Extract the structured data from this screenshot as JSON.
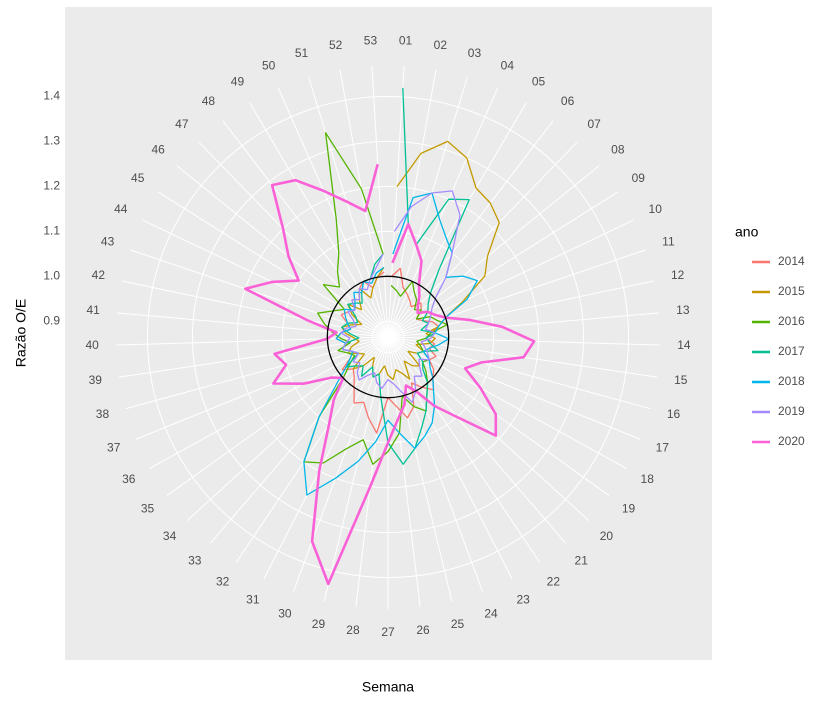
{
  "chart_data": {
    "type": "polar_line",
    "x_label": "Semana",
    "y_label": "Razão O/E",
    "categories": [
      "01",
      "02",
      "03",
      "04",
      "05",
      "06",
      "07",
      "08",
      "09",
      "10",
      "11",
      "12",
      "13",
      "14",
      "15",
      "16",
      "17",
      "18",
      "19",
      "20",
      "21",
      "22",
      "23",
      "24",
      "25",
      "26",
      "27",
      "28",
      "29",
      "30",
      "31",
      "32",
      "33",
      "34",
      "35",
      "36",
      "37",
      "38",
      "39",
      "40",
      "41",
      "42",
      "43",
      "44",
      "45",
      "46",
      "47",
      "48",
      "49",
      "50",
      "51",
      "52",
      "53"
    ],
    "ylim": [
      0.865,
      1.47
    ],
    "yticks": [
      {
        "value": 0.9,
        "label": "0.9"
      },
      {
        "value": 1.0,
        "label": "1.0"
      },
      {
        "value": 1.1,
        "label": "1.1"
      },
      {
        "value": 1.2,
        "label": "1.2"
      },
      {
        "value": 1.3,
        "label": "1.3"
      },
      {
        "value": 1.4,
        "label": "1.4"
      }
    ],
    "reference_circle": 1.0,
    "grid": true,
    "legend_title": "ano",
    "legend_position": "right",
    "series": [
      {
        "name": "2014",
        "color": "#f8766d",
        "line_width": 1.3,
        "values": [
          1.0,
          1.02,
          0.98,
          0.97,
          0.96,
          0.95,
          0.97,
          0.96,
          0.94,
          0.95,
          0.97,
          0.98,
          0.96,
          0.95,
          0.97,
          0.96,
          0.98,
          0.97,
          0.99,
          1.0,
          1.02,
          1.0,
          0.98,
          1.03,
          1.05,
          1.02,
          1.0,
          1.08,
          1.05,
          1.02,
          1.03,
          1.0,
          0.98,
          0.97,
          0.99,
          0.96,
          0.95,
          0.97,
          0.96,
          0.98,
          0.97,
          0.95,
          0.96,
          0.98,
          0.97,
          0.96,
          0.98,
          0.97,
          0.99,
          1.0,
          0.98,
          1.0,
          1.01
        ]
      },
      {
        "name": "2015",
        "color": "#c49a00",
        "line_width": 1.3,
        "values": [
          1.2,
          1.28,
          1.32,
          1.3,
          1.25,
          1.24,
          1.22,
          1.15,
          1.12,
          1.05,
          1.0,
          0.98,
          0.95,
          0.97,
          0.96,
          0.93,
          0.95,
          0.94,
          0.92,
          0.96,
          0.95,
          0.93,
          0.97,
          0.95,
          0.94,
          0.96,
          0.95,
          0.93,
          0.95,
          0.96,
          0.94,
          0.92,
          0.95,
          0.97,
          0.93,
          0.94,
          0.96,
          0.95,
          0.93,
          0.94,
          0.96,
          0.97,
          0.95,
          0.93,
          0.96,
          0.98,
          0.95,
          0.97,
          0.99,
          0.96,
          0.98,
          1.0,
          1.02
        ]
      },
      {
        "name": "2016",
        "color": "#53b400",
        "line_width": 1.3,
        "values": [
          0.98,
          0.97,
          0.96,
          1.0,
          0.98,
          0.97,
          0.95,
          0.96,
          0.94,
          0.97,
          0.98,
          1.0,
          0.96,
          0.95,
          0.93,
          0.94,
          0.95,
          0.97,
          0.96,
          0.98,
          1.0,
          1.02,
          1.05,
          1.03,
          1.0,
          1.08,
          1.12,
          1.15,
          1.1,
          1.13,
          1.18,
          1.2,
          1.1,
          1.0,
          0.97,
          0.95,
          0.96,
          0.98,
          0.95,
          0.97,
          0.99,
          1.01,
          1.03,
          1.0,
          0.98,
          1.05,
          1.02,
          1.05,
          1.08,
          1.15,
          1.34,
          1.2,
          1.05
        ]
      },
      {
        "name": "2017",
        "color": "#00c094",
        "line_width": 1.3,
        "values": [
          1.42,
          1.12,
          1.08,
          1.2,
          1.22,
          1.05,
          1.0,
          0.98,
          0.97,
          0.95,
          0.96,
          0.94,
          0.97,
          0.95,
          0.96,
          0.98,
          0.95,
          0.94,
          0.96,
          0.97,
          1.0,
          1.02,
          1.05,
          1.08,
          1.12,
          1.15,
          1.1,
          1.0,
          0.95,
          0.96,
          0.94,
          0.97,
          0.95,
          0.96,
          0.98,
          0.94,
          0.95,
          0.97,
          0.96,
          0.93,
          0.95,
          0.97,
          0.96,
          0.94,
          0.95,
          0.98,
          0.97,
          0.96,
          0.98,
          1.0,
          1.0,
          1.03,
          1.05
        ]
      },
      {
        "name": "2018",
        "color": "#00b6eb",
        "line_width": 1.3,
        "values": [
          1.05,
          1.18,
          1.2,
          1.15,
          1.12,
          1.1,
          1.05,
          1.08,
          1.1,
          1.06,
          1.0,
          0.98,
          0.97,
          1.0,
          0.98,
          0.96,
          0.95,
          0.97,
          0.98,
          1.0,
          1.02,
          1.05,
          1.08,
          1.1,
          1.12,
          1.08,
          1.05,
          1.1,
          1.15,
          1.2,
          1.26,
          1.2,
          1.1,
          1.02,
          0.98,
          0.96,
          0.95,
          0.97,
          0.96,
          0.98,
          0.97,
          0.95,
          0.96,
          0.97,
          0.98,
          0.96,
          0.97,
          0.99,
          0.98,
          1.0,
          0.99,
          1.01,
          1.02
        ]
      },
      {
        "name": "2019",
        "color": "#a58aff",
        "line_width": 1.3,
        "values": [
          1.1,
          1.16,
          1.2,
          1.22,
          1.18,
          1.1,
          1.05,
          1.0,
          0.98,
          0.97,
          0.96,
          0.95,
          0.97,
          0.96,
          0.94,
          0.95,
          0.96,
          0.97,
          0.95,
          0.96,
          0.98,
          0.97,
          1.0,
          1.02,
          0.99,
          0.97,
          0.96,
          0.98,
          0.97,
          0.95,
          0.96,
          0.98,
          0.97,
          0.95,
          0.96,
          0.94,
          0.95,
          0.97,
          0.96,
          0.95,
          0.97,
          0.96,
          0.94,
          0.95,
          0.97,
          0.96,
          0.98,
          0.97,
          0.99,
          0.98,
          1.0,
          1.02,
          1.05
        ]
      },
      {
        "name": "2020",
        "color": "#fb61d7",
        "line_width": 2.6,
        "values": [
          1.03,
          1.12,
          1.08,
          1.05,
          1.0,
          0.98,
          0.96,
          0.95,
          0.97,
          0.98,
          1.0,
          1.05,
          1.12,
          1.19,
          1.17,
          1.08,
          1.05,
          1.1,
          1.16,
          1.19,
          1.1,
          1.05,
          1.0,
          0.98,
          1.02,
          1.05,
          1.1,
          1.2,
          1.43,
          1.35,
          1.2,
          1.1,
          1.05,
          1.0,
          1.02,
          1.08,
          1.14,
          1.1,
          1.12,
          1.0,
          0.98,
          1.05,
          1.2,
          1.15,
          1.1,
          1.15,
          1.2,
          1.29,
          1.27,
          1.22,
          1.18,
          1.15,
          1.25
        ]
      }
    ]
  }
}
